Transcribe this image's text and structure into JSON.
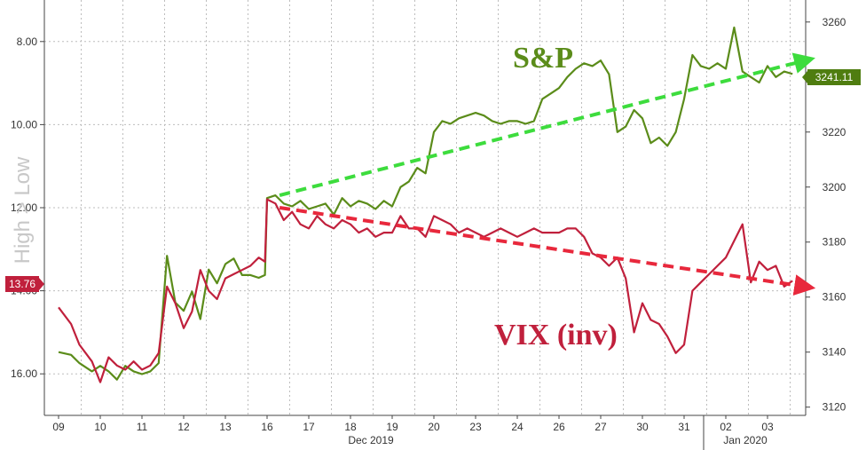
{
  "chart_data": {
    "type": "line",
    "side_label": "High > Low",
    "x_ticks": [
      "09",
      "10",
      "11",
      "12",
      "13",
      "16",
      "17",
      "18",
      "19",
      "20",
      "23",
      "24",
      "26",
      "27",
      "30",
      "31",
      "02",
      "03"
    ],
    "x_sublabels": [
      "Dec 2019",
      "Jan 2020"
    ],
    "left_axis": {
      "ticks": [
        "8.00",
        "10.00",
        "12.00",
        "14.00",
        "16.00"
      ],
      "range": [
        7.0,
        17.0
      ],
      "inverted": true
    },
    "right_axis": {
      "ticks": [
        "3120",
        "3140",
        "3160",
        "3180",
        "3200",
        "3220",
        "3240",
        "3260"
      ],
      "range": [
        3117,
        3268
      ]
    },
    "grid": true,
    "series": [
      {
        "name": "S&P",
        "color": "#5b8c1a",
        "axis": "right",
        "last_value_label": "3241.11",
        "x": [
          0,
          0.3,
          0.5,
          0.8,
          1.0,
          1.2,
          1.4,
          1.6,
          1.8,
          2.0,
          2.2,
          2.4,
          2.6,
          2.8,
          3.0,
          3.2,
          3.4,
          3.6,
          3.8,
          4.0,
          4.2,
          4.4,
          4.6,
          4.8,
          4.95,
          5.0,
          5.2,
          5.4,
          5.6,
          5.8,
          6.0,
          6.2,
          6.4,
          6.6,
          6.8,
          7.0,
          7.2,
          7.4,
          7.6,
          7.8,
          8.0,
          8.2,
          8.4,
          8.6,
          8.8,
          9.0,
          9.2,
          9.4,
          9.6,
          9.8,
          10.0,
          10.2,
          10.4,
          10.6,
          10.8,
          11.0,
          11.2,
          11.4,
          11.6,
          11.8,
          12.0,
          12.2,
          12.4,
          12.6,
          12.8,
          13.0,
          13.2,
          13.4,
          13.6,
          13.8,
          14.0,
          14.2,
          14.4,
          14.6,
          14.8,
          15.0,
          15.2,
          15.4,
          15.6,
          15.8,
          16.0,
          16.2,
          16.4,
          16.6,
          16.8,
          17.0,
          17.2,
          17.4,
          17.6
        ],
        "values": [
          3140,
          3139,
          3136,
          3133,
          3135,
          3133,
          3130,
          3135,
          3133,
          3132,
          3133,
          3136,
          3175,
          3158,
          3155,
          3162,
          3152,
          3170,
          3165,
          3172,
          3174,
          3168,
          3168,
          3167,
          3168,
          3196,
          3197,
          3194,
          3193,
          3195,
          3192,
          3193,
          3194,
          3190,
          3196,
          3193,
          3195,
          3194,
          3192,
          3195,
          3193,
          3200,
          3202,
          3207,
          3205,
          3220,
          3224,
          3223,
          3225,
          3226,
          3227,
          3226,
          3224,
          3223,
          3224,
          3224,
          3223,
          3224,
          3232,
          3234,
          3236,
          3240,
          3243,
          3245,
          3244,
          3246,
          3241,
          3220,
          3222,
          3228,
          3225,
          3216,
          3218,
          3215,
          3220,
          3232,
          3248,
          3244,
          3243,
          3245,
          3243,
          3258,
          3242,
          3240,
          3238,
          3244,
          3240,
          3242,
          3241.11
        ]
      },
      {
        "name": "VIX (inv)",
        "color": "#c0203c",
        "axis": "left",
        "last_value_label": "13.76",
        "x": [
          0,
          0.3,
          0.5,
          0.8,
          1.0,
          1.2,
          1.4,
          1.6,
          1.8,
          2.0,
          2.2,
          2.4,
          2.6,
          2.8,
          3.0,
          3.2,
          3.4,
          3.6,
          3.8,
          4.0,
          4.2,
          4.4,
          4.6,
          4.8,
          4.95,
          5.0,
          5.2,
          5.4,
          5.6,
          5.8,
          6.0,
          6.2,
          6.4,
          6.6,
          6.8,
          7.0,
          7.2,
          7.4,
          7.6,
          7.8,
          8.0,
          8.2,
          8.4,
          8.6,
          8.8,
          9.0,
          9.2,
          9.4,
          9.6,
          9.8,
          10.0,
          10.2,
          10.4,
          10.6,
          10.8,
          11.0,
          11.2,
          11.4,
          11.6,
          11.8,
          12.0,
          12.2,
          12.4,
          12.6,
          12.8,
          13.0,
          13.2,
          13.4,
          13.6,
          13.8,
          14.0,
          14.2,
          14.4,
          14.6,
          14.8,
          15.0,
          15.2,
          15.4,
          15.6,
          15.8,
          16.0,
          16.2,
          16.4,
          16.6,
          16.8,
          17.0,
          17.2,
          17.4,
          17.6
        ],
        "values": [
          14.4,
          14.8,
          15.3,
          15.7,
          16.2,
          15.6,
          15.8,
          15.9,
          15.7,
          15.9,
          15.8,
          15.5,
          13.9,
          14.3,
          14.9,
          14.5,
          13.5,
          14.0,
          14.2,
          13.7,
          13.6,
          13.5,
          13.4,
          13.2,
          13.3,
          11.8,
          11.9,
          12.3,
          12.1,
          12.4,
          12.5,
          12.2,
          12.4,
          12.5,
          12.3,
          12.4,
          12.6,
          12.5,
          12.7,
          12.6,
          12.6,
          12.2,
          12.5,
          12.5,
          12.7,
          12.2,
          12.3,
          12.4,
          12.6,
          12.5,
          12.6,
          12.7,
          12.6,
          12.5,
          12.6,
          12.7,
          12.6,
          12.5,
          12.6,
          12.6,
          12.6,
          12.5,
          12.5,
          12.7,
          13.1,
          13.2,
          13.4,
          13.2,
          13.7,
          15.0,
          14.3,
          14.7,
          14.8,
          15.1,
          15.5,
          15.3,
          14.0,
          13.8,
          13.6,
          13.4,
          13.2,
          12.8,
          12.4,
          13.8,
          13.3,
          13.5,
          13.4,
          13.9,
          13.76
        ]
      }
    ],
    "annotations": [
      {
        "text": "S&P",
        "color": "#5b8c1a"
      },
      {
        "text": "VIX (inv)",
        "color": "#c0203c"
      }
    ],
    "trend_arrows": [
      {
        "color": "#3ddc3d",
        "x": [
          5.3,
          17.9
        ],
        "axis": "right",
        "y": [
          3197,
          3246
        ]
      },
      {
        "color": "#e8283c",
        "x": [
          5.3,
          17.9
        ],
        "axis": "left",
        "y": [
          12.0,
          13.9
        ]
      }
    ]
  }
}
